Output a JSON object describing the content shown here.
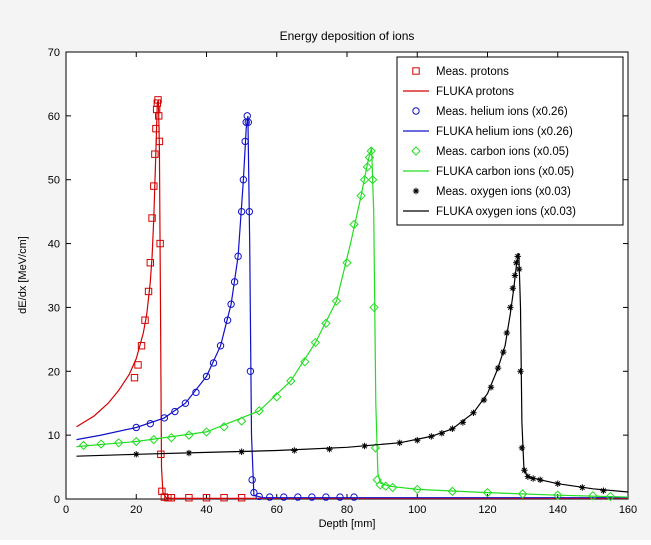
{
  "chart_data": {
    "type": "line",
    "title": "Energy deposition of ions",
    "xlabel": "Depth [mm]",
    "ylabel": "dE/dx [MeV/cm]",
    "xlim": [
      0,
      160
    ],
    "ylim": [
      0,
      70
    ],
    "xticks": [
      0,
      20,
      40,
      60,
      80,
      100,
      120,
      140,
      160
    ],
    "yticks": [
      0,
      10,
      20,
      30,
      40,
      50,
      60,
      70
    ],
    "grid": false,
    "legend_position": "top-right",
    "colors": {
      "protons": "#d40000",
      "helium": "#1010c8",
      "carbon": "#22dd22",
      "oxygen": "#000000"
    },
    "series": [
      {
        "name": "Meas. protons",
        "kind": "measured",
        "marker": "square",
        "color": "#d40000",
        "x": [
          19.5,
          20.5,
          21.5,
          22.5,
          23.5,
          24.0,
          24.5,
          25.0,
          25.3,
          25.6,
          25.8,
          26.0,
          26.2,
          26.4,
          26.6,
          26.8,
          27.0,
          27.3,
          28.0,
          29.0,
          30.0,
          35.0,
          40.0,
          45.0,
          50.0
        ],
        "y": [
          19,
          21,
          24,
          28,
          32.5,
          37,
          44,
          49,
          54,
          58,
          61,
          62,
          62.5,
          60,
          56,
          40,
          7,
          1.2,
          0.3,
          0.2,
          0.2,
          0.2,
          0.2,
          0.2,
          0.2
        ]
      },
      {
        "name": "FLUKA protons",
        "kind": "simulated",
        "marker": "none",
        "color": "#d40000",
        "x": [
          3,
          8,
          12,
          15,
          18,
          20,
          22,
          23,
          24,
          24.5,
          25,
          25.5,
          26,
          26.3,
          26.6,
          26.9,
          27.2,
          27.6,
          28.5,
          30,
          160
        ],
        "y": [
          11.3,
          13,
          15,
          17,
          19.5,
          22,
          26,
          29,
          34,
          38,
          44,
          53,
          62,
          62.5,
          55,
          30,
          5,
          1,
          0.2,
          0.1,
          0.1
        ]
      },
      {
        "name": "Meas. helium ions (x0.26)",
        "kind": "measured",
        "marker": "circle",
        "color": "#1010c8",
        "x": [
          20,
          24,
          28,
          31,
          34,
          37,
          40,
          42,
          44,
          46,
          47,
          48,
          49,
          50,
          50.5,
          51,
          51.3,
          51.6,
          51.9,
          52.2,
          52.5,
          53,
          53.5,
          55,
          58,
          62,
          66,
          70,
          74,
          78,
          82
        ],
        "y": [
          11.2,
          11.8,
          12.7,
          13.7,
          15,
          16.7,
          19.2,
          21.3,
          24,
          28,
          30.5,
          34,
          38,
          45,
          50,
          56,
          59,
          60,
          59,
          45,
          20,
          3,
          1,
          0.4,
          0.3,
          0.3,
          0.3,
          0.3,
          0.3,
          0.3,
          0.3
        ]
      },
      {
        "name": "FLUKA helium ions (x0.26)",
        "kind": "simulated",
        "marker": "none",
        "color": "#1010c8",
        "x": [
          3,
          10,
          20,
          28,
          34,
          40,
          44,
          47,
          49,
          50.5,
          51.3,
          51.8,
          52.3,
          52.8,
          53.5,
          56,
          160
        ],
        "y": [
          9.3,
          10,
          11.2,
          12.7,
          15,
          19.2,
          24,
          30.5,
          38,
          50,
          58,
          60,
          40,
          10,
          0.6,
          0.2,
          0.2
        ]
      },
      {
        "name": "Meas. carbon ions (x0.05)",
        "kind": "measured",
        "marker": "diamond",
        "color": "#22dd22",
        "x": [
          5,
          10,
          15,
          20,
          25,
          30,
          35,
          40,
          45,
          50,
          55,
          60,
          64,
          68,
          71,
          74,
          77,
          80,
          82,
          84,
          85,
          85.8,
          86.4,
          86.9,
          87.3,
          87.7,
          88.1,
          88.6,
          89.5,
          91,
          93,
          100,
          110,
          120,
          130,
          140,
          150,
          155
        ],
        "y": [
          8.4,
          8.6,
          8.8,
          9.0,
          9.3,
          9.6,
          10,
          10.5,
          11.3,
          12.2,
          13.8,
          16,
          18.5,
          21.5,
          24.5,
          27.5,
          31,
          37,
          43,
          47.5,
          50,
          52,
          53.5,
          54.5,
          50,
          30,
          8,
          3,
          2.2,
          2,
          1.8,
          1.5,
          1.2,
          1,
          0.8,
          0.6,
          0.5,
          0.4
        ]
      },
      {
        "name": "FLUKA carbon ions (x0.05)",
        "kind": "simulated",
        "marker": "none",
        "color": "#22dd22",
        "x": [
          3,
          20,
          40,
          55,
          64,
          71,
          77,
          81,
          84,
          86,
          87,
          87.6,
          88.2,
          88.8,
          89.5,
          92,
          100,
          120,
          140,
          160
        ],
        "y": [
          8.2,
          9,
          10.5,
          13.8,
          18.5,
          24.5,
          31,
          40,
          47.5,
          53,
          55,
          45,
          15,
          4,
          2.5,
          2,
          1.5,
          1,
          0.6,
          0.3
        ]
      },
      {
        "name": "Meas. oxygen ions (x0.03)",
        "kind": "measured",
        "marker": "star",
        "color": "#000000",
        "x": [
          20,
          35,
          50,
          65,
          75,
          85,
          95,
          100,
          104,
          107,
          110,
          113,
          116,
          119,
          121,
          123,
          124.5,
          125.5,
          126.5,
          127.2,
          127.8,
          128.2,
          128.6,
          129,
          129.4,
          129.8,
          130.5,
          131.5,
          133,
          135,
          140,
          147,
          153
        ],
        "y": [
          7,
          7.2,
          7.4,
          7.6,
          7.8,
          8.3,
          8.8,
          9.2,
          9.8,
          10.3,
          11,
          12,
          13.5,
          15.5,
          17.5,
          20.5,
          23,
          26,
          30,
          33,
          35,
          37,
          38,
          36,
          20,
          8,
          4.5,
          3.5,
          3.2,
          3,
          2.4,
          1.8,
          1.3
        ]
      },
      {
        "name": "FLUKA oxygen ions (x0.03)",
        "kind": "simulated",
        "marker": "none",
        "color": "#000000",
        "x": [
          3,
          20,
          40,
          60,
          80,
          95,
          104,
          110,
          116,
          120,
          123,
          125,
          126.5,
          127.5,
          128.3,
          128.9,
          129.4,
          129.8,
          130.4,
          131.5,
          135,
          140,
          150,
          160
        ],
        "y": [
          6.7,
          7,
          7.3,
          7.6,
          8.1,
          8.8,
          9.8,
          11,
          13.5,
          16.5,
          20.5,
          24,
          29,
          33,
          37,
          38.5,
          30,
          12,
          4.5,
          3.5,
          3,
          2.4,
          1.6,
          1.1
        ]
      }
    ]
  }
}
